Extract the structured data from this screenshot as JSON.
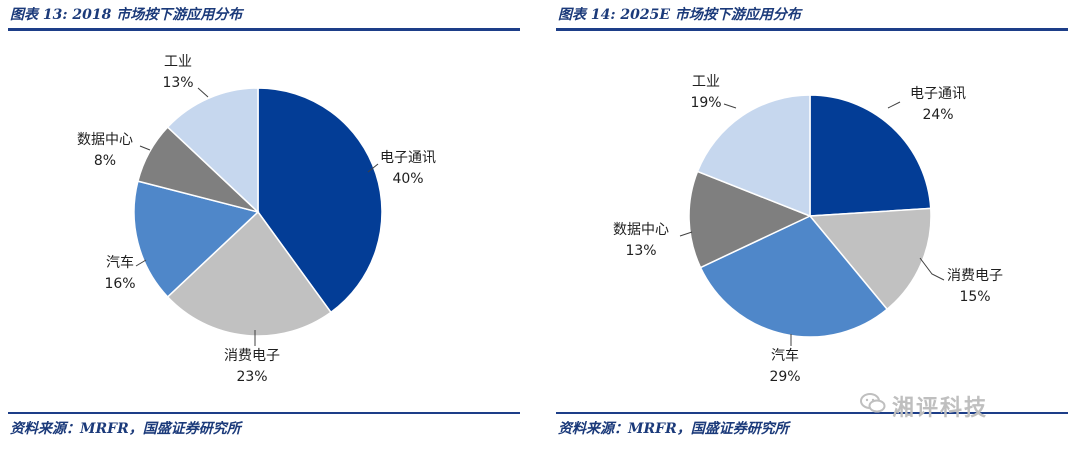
{
  "chart_data": [
    {
      "type": "pie",
      "title": "图表 13:  2018 市场按下游应用分布",
      "source": "资料来源：MRFR，国盛证券研究所",
      "slices": [
        {
          "label": "电子通讯",
          "value": 40,
          "value_label": "40%",
          "color": "#033d96"
        },
        {
          "label": "消费电子",
          "value": 23,
          "value_label": "23%",
          "color": "#c1c1c1"
        },
        {
          "label": "汽车",
          "value": 16,
          "value_label": "16%",
          "color": "#4f87c9"
        },
        {
          "label": "数据中心",
          "value": 8,
          "value_label": "8%",
          "color": "#7f7f7f"
        },
        {
          "label": "工业",
          "value": 13,
          "value_label": "13%",
          "color": "#c6d7ee"
        }
      ]
    },
    {
      "type": "pie",
      "title": "图表 14:  2025E 市场按下游应用分布",
      "source": "资料来源：MRFR，国盛证券研究所",
      "slices": [
        {
          "label": "电子通讯",
          "value": 24,
          "value_label": "24%",
          "color": "#033d96"
        },
        {
          "label": "消费电子",
          "value": 15,
          "value_label": "15%",
          "color": "#c1c1c1"
        },
        {
          "label": "汽车",
          "value": 29,
          "value_label": "29%",
          "color": "#4f87c9"
        },
        {
          "label": "数据中心",
          "value": 13,
          "value_label": "13%",
          "color": "#7f7f7f"
        },
        {
          "label": "工业",
          "value": 19,
          "value_label": "19%",
          "color": "#c6d7ee"
        }
      ]
    }
  ],
  "watermark": "湘评科技"
}
